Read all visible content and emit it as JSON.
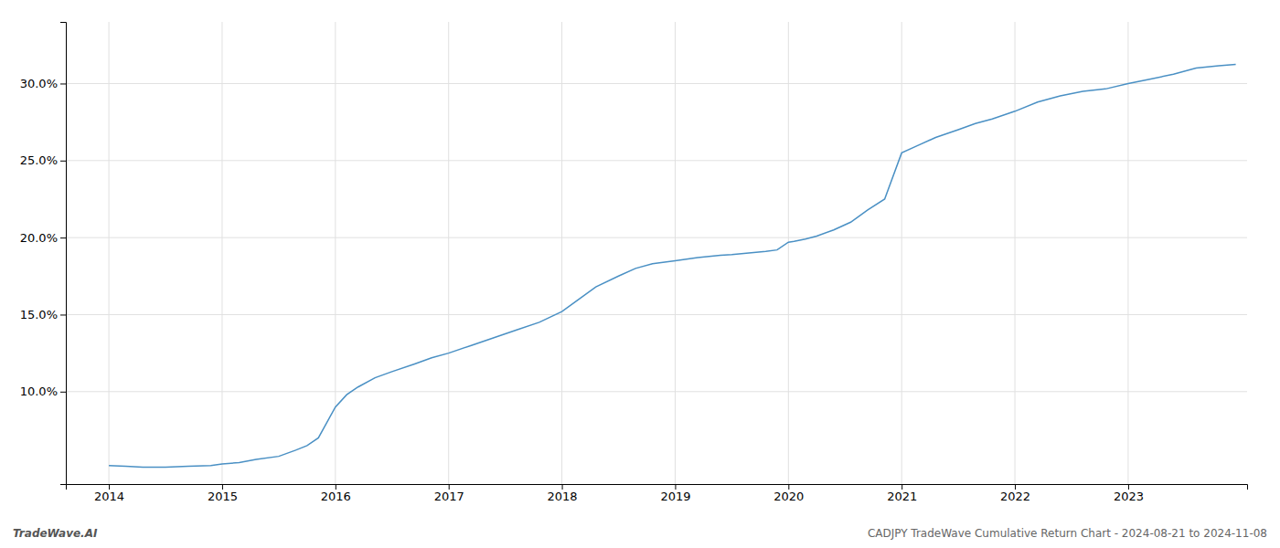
{
  "chart_data": {
    "type": "line",
    "title": "CADJPY TradeWave Cumulative Return Chart - 2024-08-21 to 2024-11-08",
    "annotations": [
      {
        "text": "TradeWave.AI"
      }
    ],
    "color": "#4a90c4",
    "grid": true,
    "x": [
      2014.0,
      2014.15,
      2014.3,
      2014.5,
      2014.7,
      2014.9,
      2015.0,
      2015.15,
      2015.3,
      2015.5,
      2015.65,
      2015.75,
      2015.85,
      2016.0,
      2016.1,
      2016.2,
      2016.35,
      2016.5,
      2016.7,
      2016.85,
      2017.0,
      2017.2,
      2017.4,
      2017.6,
      2017.8,
      2018.0,
      2018.15,
      2018.3,
      2018.5,
      2018.65,
      2018.8,
      2019.0,
      2019.2,
      2019.4,
      2019.5,
      2019.65,
      2019.8,
      2019.9,
      2020.0,
      2020.05,
      2020.15,
      2020.25,
      2020.4,
      2020.55,
      2020.7,
      2020.85,
      2021.0,
      2021.15,
      2021.3,
      2021.5,
      2021.65,
      2021.8,
      2022.0,
      2022.2,
      2022.4,
      2022.6,
      2022.8,
      2023.0,
      2023.2,
      2023.4,
      2023.6,
      2023.8,
      2023.95
    ],
    "values": [
      5.2,
      5.15,
      5.1,
      5.1,
      5.15,
      5.2,
      5.3,
      5.4,
      5.6,
      5.8,
      6.2,
      6.5,
      7.0,
      9.0,
      9.8,
      10.3,
      10.9,
      11.3,
      11.8,
      12.2,
      12.5,
      13.0,
      13.5,
      14.0,
      14.5,
      15.2,
      16.0,
      16.8,
      17.5,
      18.0,
      18.3,
      18.5,
      18.7,
      18.85,
      18.9,
      19.0,
      19.1,
      19.2,
      19.7,
      19.75,
      19.9,
      20.1,
      20.5,
      21.0,
      21.8,
      22.5,
      25.5,
      26.0,
      26.5,
      27.0,
      27.4,
      27.7,
      28.2,
      28.8,
      29.2,
      29.5,
      29.65,
      30.0,
      30.3,
      30.6,
      31.0,
      31.15,
      31.25
    ],
    "xlim": [
      2013.62,
      2024.05
    ],
    "xticks": [
      2014,
      2015,
      2016,
      2017,
      2018,
      2019,
      2020,
      2021,
      2022,
      2023
    ],
    "ylim": [
      4.0,
      34.0
    ],
    "yticks": [
      {
        "value": 10.0,
        "label": "10.0%"
      },
      {
        "value": 15.0,
        "label": "15.0%"
      },
      {
        "value": 20.0,
        "label": "20.0%"
      },
      {
        "value": 25.0,
        "label": "25.0%"
      },
      {
        "value": 30.0,
        "label": "30.0%"
      }
    ]
  }
}
